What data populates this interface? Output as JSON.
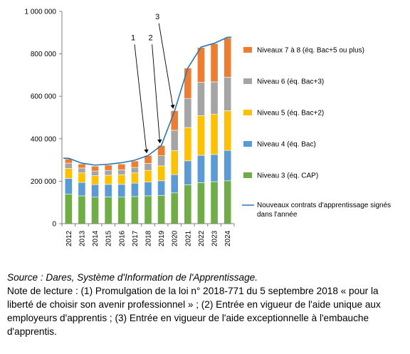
{
  "chart_data": {
    "type": "bar",
    "stacked": true,
    "categories": [
      "2012",
      "2013",
      "2014",
      "2015",
      "2016",
      "2017",
      "2018",
      "2019",
      "2020",
      "2021",
      "2022",
      "2023",
      "2024"
    ],
    "ylim": [
      0,
      1000000
    ],
    "yticks": [
      0,
      200000,
      400000,
      600000,
      800000,
      1000000
    ],
    "ytick_labels": [
      "0",
      "200 000",
      "400 000",
      "600 000",
      "800 000",
      "1 000 000"
    ],
    "grid": false,
    "legend_position": "right",
    "series": [
      {
        "name": "Niveau 3 (éq. CAP)",
        "color": "#70ad47",
        "values": [
          140000,
          131000,
          125000,
          126000,
          125000,
          128000,
          131000,
          133000,
          145000,
          183000,
          193000,
          198000,
          202000
        ]
      },
      {
        "name": "Niveau 4 (éq. Bac)",
        "color": "#5b9bd5",
        "values": [
          73000,
          63000,
          59000,
          59000,
          60000,
          63000,
          65000,
          69000,
          86000,
          113000,
          129000,
          128000,
          143000
        ]
      },
      {
        "name": "Niveau 5 (éq. Bac+2)",
        "color": "#ffc000",
        "values": [
          47000,
          45000,
          42000,
          43000,
          45000,
          48000,
          55000,
          70000,
          113000,
          157000,
          187000,
          190000,
          187000
        ]
      },
      {
        "name": "Niveau 6 (éq. Bac+3)",
        "color": "#a5a5a5",
        "values": [
          25000,
          23000,
          22000,
          23000,
          24000,
          26000,
          33000,
          48000,
          96000,
          137000,
          157000,
          152000,
          158000
        ]
      },
      {
        "name": "Niveaux 7 à 8 (éq.  Bac+5 ou plus)",
        "color": "#ed7d31",
        "values": [
          20000,
          19000,
          23000,
          25000,
          27000,
          30000,
          37000,
          48000,
          92000,
          143000,
          164000,
          180000,
          185000
        ]
      }
    ],
    "line": {
      "name": "Nouveaux contrats d'apprentissage signés dans l'année",
      "color": "#2e75b6",
      "values": [
        308000,
        285000,
        276000,
        280000,
        287000,
        299000,
        321000,
        368000,
        531000,
        733000,
        832000,
        850000,
        878000
      ]
    },
    "annotations": [
      {
        "label": "1",
        "category": "2018"
      },
      {
        "label": "2",
        "category": "2019"
      },
      {
        "label": "3",
        "category": "2020"
      }
    ]
  },
  "legend": {
    "line_label_1": "Nouveaux contrats d'apprentissage signés",
    "line_label_2": "dans l'année"
  },
  "notes": {
    "source": "Source : Dares, Système d'Information de l'Apprentissage.",
    "reading_note": "Note de lecture : (1) Promulgation de la loi n° 2018-771 du 5 septembre 2018 « pour la liberté de choisir son avenir professionnel » ; (2) Entrée en vigueur de l'aide unique aux employeurs d'apprentis ; (3) Entrée en vigueur de l'aide exceptionnelle à l'embauche d'apprentis."
  }
}
